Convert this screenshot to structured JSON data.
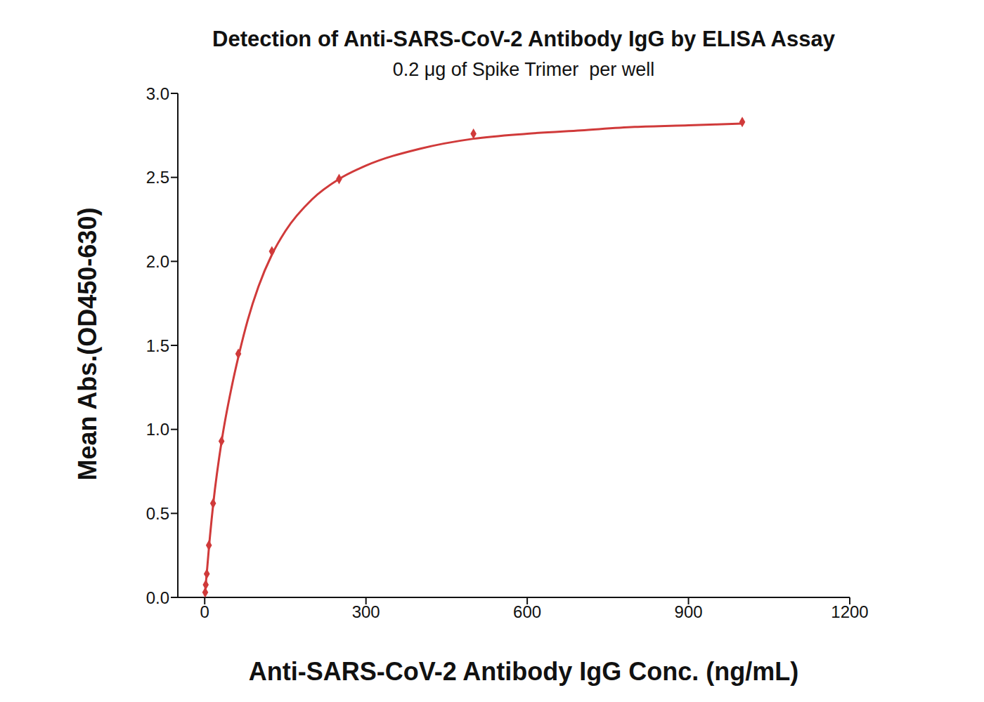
{
  "chart_data": {
    "type": "scatter",
    "title": "Detection of Anti-SARS-CoV-2 Antibody IgG by ELISA Assay",
    "subtitle": "0.2 μg of Spike Trimer  per well",
    "x_label": "Anti-SARS-CoV-2 Antibody IgG Conc. (ng/mL)",
    "y_label": "Mean Abs.(OD450-630)",
    "xlim": [
      -50,
      1200
    ],
    "xticks": [
      0,
      300,
      600,
      900,
      1200
    ],
    "ylim": [
      0,
      3
    ],
    "yticks": [
      {
        "value": 0,
        "label": "0.0"
      },
      0.5,
      {
        "value": 1,
        "label": "1.0"
      },
      1.5,
      {
        "value": 2,
        "label": "2.0"
      },
      2.5,
      {
        "value": 3,
        "label": "3.0"
      }
    ],
    "grid": false,
    "series": [
      {
        "type": "scatter",
        "marker": "diamond",
        "color": "#d03a3a",
        "x": [
          1000,
          500,
          250,
          125,
          62.5,
          31.25,
          15.6,
          7.8,
          3.9,
          1.95,
          0.98
        ],
        "values": [
          2.83,
          2.76,
          2.49,
          2.06,
          1.45,
          0.93,
          0.56,
          0.31,
          0.14,
          0.075,
          0.03
        ]
      },
      {
        "type": "line",
        "line_style": "solid",
        "color": "#d03a3a",
        "x": [
          0,
          2,
          4,
          8,
          16,
          32,
          50,
          64,
          80,
          100,
          125,
          150,
          200,
          250,
          300,
          400,
          500,
          600,
          700,
          800,
          900,
          1000
        ],
        "values": [
          0.01,
          0.08,
          0.15,
          0.3,
          0.56,
          0.94,
          1.25,
          1.45,
          1.65,
          1.85,
          2.04,
          2.18,
          2.37,
          2.49,
          2.57,
          2.67,
          2.73,
          2.76,
          2.78,
          2.8,
          2.81,
          2.82
        ]
      }
    ]
  }
}
